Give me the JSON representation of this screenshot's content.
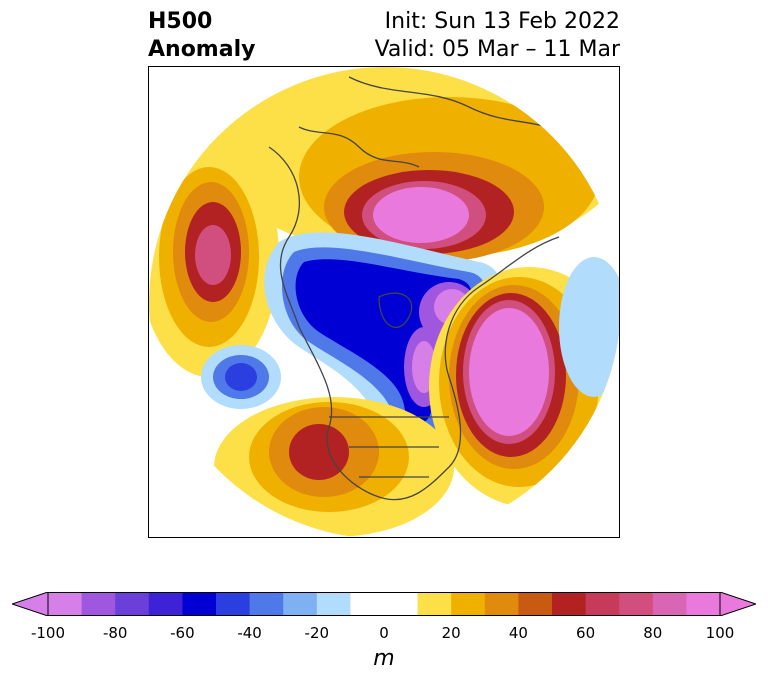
{
  "header": {
    "title_line1": "H500",
    "title_line2": "Anomaly",
    "init_text": "Init: Sun 13 Feb 2022",
    "valid_text": "Valid: 05 Mar – 11 Mar"
  },
  "colorbar": {
    "units": "m",
    "ticks": [
      "-100",
      "-80",
      "-60",
      "-40",
      "-20",
      "0",
      "20",
      "40",
      "60",
      "80",
      "100"
    ],
    "colors": [
      "#d77fe8",
      "#9f57e0",
      "#6b3fd9",
      "#3e22d8",
      "#0000d4",
      "#2b3fe0",
      "#4f78e8",
      "#7fb0f2",
      "#b2dcfb",
      "#ffffff",
      "#ffffff",
      "#fde047",
      "#f0b000",
      "#e08a0e",
      "#c85a12",
      "#b22222",
      "#c83a5a",
      "#d04f7e",
      "#d966b4",
      "#e979dc"
    ]
  }
}
